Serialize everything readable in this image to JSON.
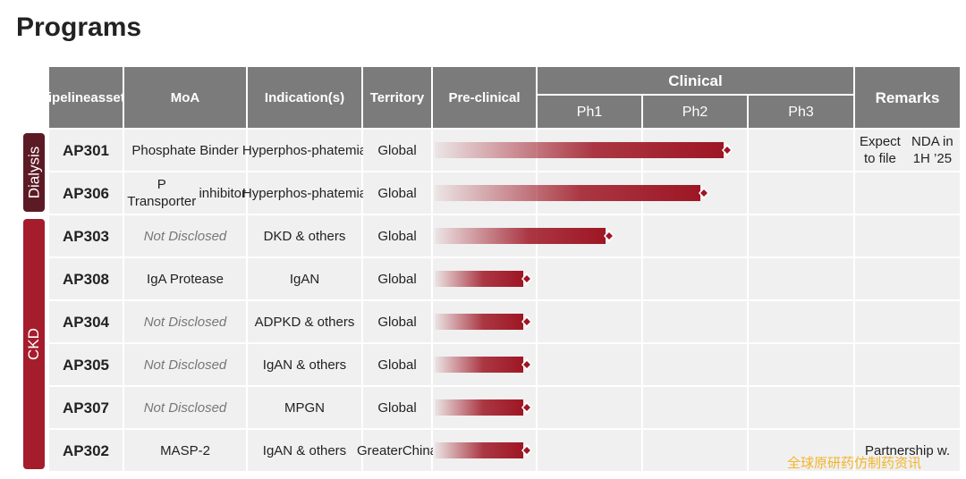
{
  "page": {
    "title": "Programs"
  },
  "headers": {
    "assets": [
      "Pipeline",
      "assets"
    ],
    "moa": "MoA",
    "indication": "Indication(s)",
    "territory": "Territory",
    "preclinical": "Pre-clinical",
    "clinical": "Clinical",
    "ph1": "Ph1",
    "ph2": "Ph2",
    "ph3": "Ph3",
    "remarks": "Remarks"
  },
  "groups": [
    {
      "label": "Dialysis",
      "color": "#5c1a24"
    },
    {
      "label": "CKD",
      "color": "#a51c2c"
    }
  ],
  "rows": [
    {
      "asset": "AP301",
      "moa": [
        "Phosphate Binder"
      ],
      "moa_nd": false,
      "indication": [
        "Hyperphos-",
        "phatemia"
      ],
      "territory": [
        "Global"
      ],
      "progress": 0.695,
      "remarks": [
        "Expect to file",
        "NDA in 1H ’25"
      ]
    },
    {
      "asset": "AP306",
      "moa": [
        "P Transporter",
        "inhibitor"
      ],
      "moa_nd": false,
      "indication": [
        "Hyperphos-",
        "phatemia"
      ],
      "territory": [
        "Global"
      ],
      "progress": 0.64,
      "remarks": []
    },
    {
      "asset": "AP303",
      "moa": [
        "Not Disclosed"
      ],
      "moa_nd": true,
      "indication": [
        "DKD & others"
      ],
      "territory": [
        "Global"
      ],
      "progress": 0.415,
      "remarks": []
    },
    {
      "asset": "AP308",
      "moa": [
        "IgA Protease"
      ],
      "moa_nd": false,
      "indication": [
        "IgAN"
      ],
      "territory": [
        "Global"
      ],
      "progress": 0.22,
      "remarks": []
    },
    {
      "asset": "AP304",
      "moa": [
        "Not Disclosed"
      ],
      "moa_nd": true,
      "indication": [
        "ADPKD & others"
      ],
      "territory": [
        "Global"
      ],
      "progress": 0.22,
      "remarks": []
    },
    {
      "asset": "AP305",
      "moa": [
        "Not Disclosed"
      ],
      "moa_nd": true,
      "indication": [
        "IgAN & others"
      ],
      "territory": [
        "Global"
      ],
      "progress": 0.22,
      "remarks": []
    },
    {
      "asset": "AP307",
      "moa": [
        "Not Disclosed"
      ],
      "moa_nd": true,
      "indication": [
        "MPGN"
      ],
      "territory": [
        "Global"
      ],
      "progress": 0.22,
      "remarks": []
    },
    {
      "asset": "AP302",
      "moa": [
        "MASP-2"
      ],
      "moa_nd": false,
      "indication": [
        "IgAN & others"
      ],
      "territory": [
        "Greater",
        "China"
      ],
      "progress": 0.22,
      "remarks": [
        "Partnership w."
      ]
    }
  ],
  "watermark": "全球原研药仿制药资讯",
  "colors": {
    "header": "#7b7b7b",
    "row": "#f0f0f0",
    "bar": "#9e1624"
  }
}
